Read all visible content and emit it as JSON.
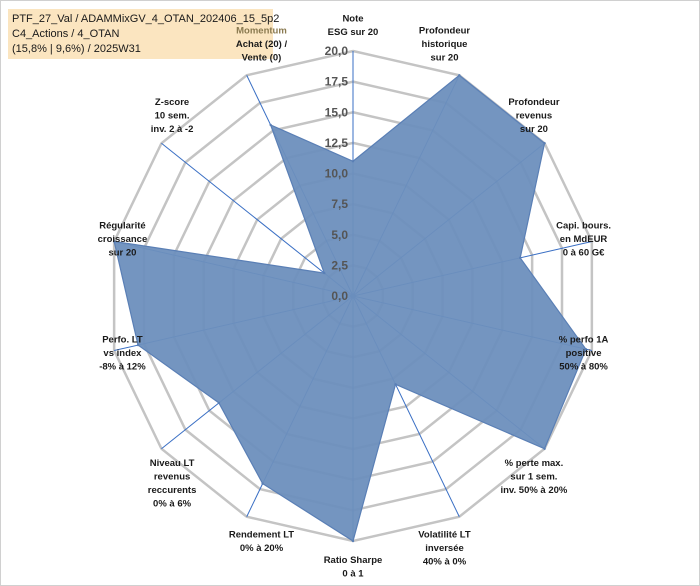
{
  "chart_data": {
    "type": "radar",
    "title_lines": [
      "PTF_27_Val / ADAMMixGV_4_OTAN_202406_15_5p2",
      "C4_Actions / 4_OTAN",
      "(15,8% | 9,6%) / 2025W31"
    ],
    "rlim": [
      0,
      20
    ],
    "ticks": [
      "0,0",
      "2,5",
      "5,0",
      "7,5",
      "10,0",
      "12,5",
      "15,0",
      "17,5",
      "20,0"
    ],
    "tick_values": [
      0,
      2.5,
      5,
      7.5,
      10,
      12.5,
      15,
      17.5,
      20
    ],
    "grid": true,
    "fill_color": "#6d8fbd",
    "line_color": "#5a7fb5",
    "axes": [
      {
        "label": [
          "Note",
          "ESG sur 20"
        ],
        "value": 11
      },
      {
        "label": [
          "Profondeur",
          "historique",
          "sur 20"
        ],
        "value": 20
      },
      {
        "label": [
          "Profondeur",
          "revenus",
          "sur 20"
        ],
        "value": 20
      },
      {
        "label": [
          "Capi. bours.",
          "en MdEUR",
          "0 à 60 G€"
        ],
        "value": 14
      },
      {
        "label": [
          "% perfo 1A",
          "positive",
          "50% à 80%"
        ],
        "value": 19.5
      },
      {
        "label": [
          "% perte max.",
          "sur 1 sem.",
          "inv. 50% à 20%"
        ],
        "value": 20
      },
      {
        "label": [
          "Volatilité LT",
          "inversée",
          "40% à 0%"
        ],
        "value": 8
      },
      {
        "label": [
          "Ratio Sharpe",
          "0 à 1"
        ],
        "value": 20
      },
      {
        "label": [
          "Rendement LT",
          "0% à 20%"
        ],
        "value": 17
      },
      {
        "label": [
          "Niveau LT",
          "revenus",
          "reccurents",
          "0% à 6%"
        ],
        "value": 14
      },
      {
        "label": [
          "Perfo. LT",
          "vs index",
          "-8% à 12%"
        ],
        "value": 18
      },
      {
        "label": [
          "Régularité",
          "croissance",
          "sur 20"
        ],
        "value": 20
      },
      {
        "label": [
          "Z-score",
          "10 sem.",
          "inv. 2 à -2"
        ],
        "value": 3
      },
      {
        "label": [
          "Momentum",
          "Achat (20) /",
          "Vente (0)"
        ],
        "value": 15.5
      }
    ]
  }
}
